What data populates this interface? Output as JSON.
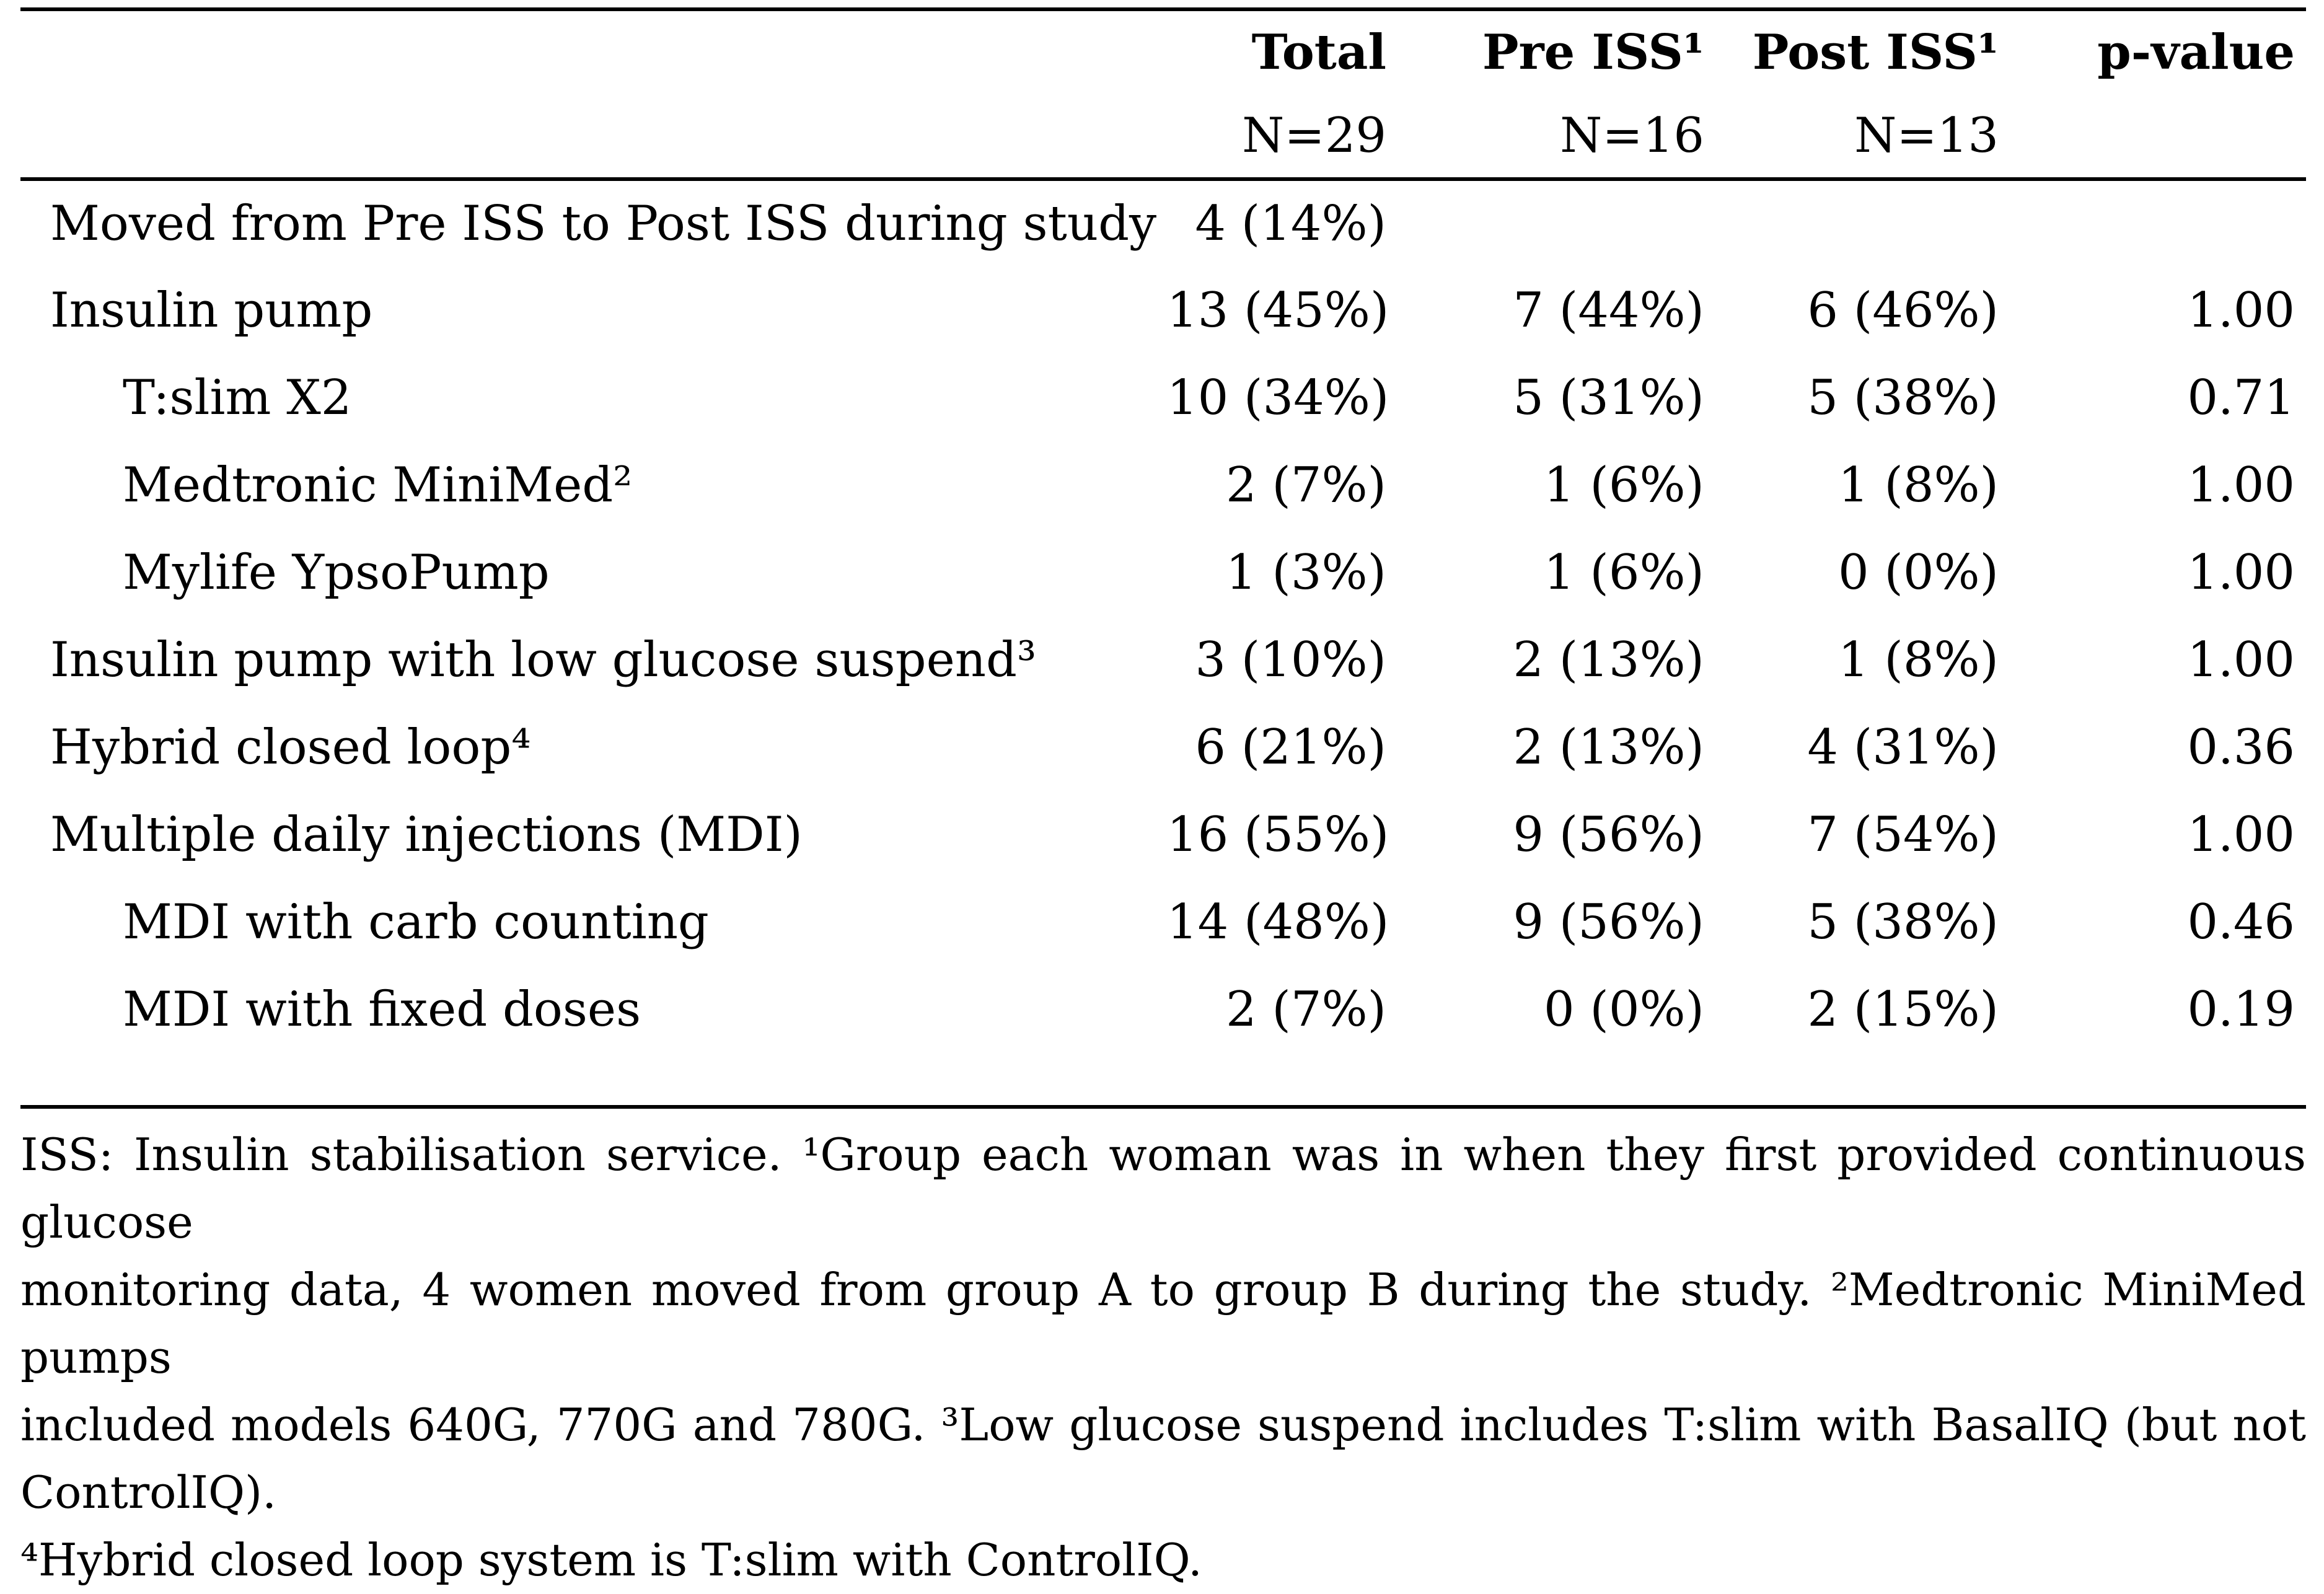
{
  "colors": {
    "background": "#ffffff",
    "text": "#000000",
    "rule": "#000000"
  },
  "table": {
    "column_headers": {
      "total": "Total",
      "pre": "Pre ISS¹",
      "post": "Post ISS¹",
      "pvalue": "p-value"
    },
    "subheaders": {
      "total": "N=29",
      "pre": "N=16",
      "post": "N=13",
      "pvalue": ""
    },
    "rows": [
      {
        "label": "Moved from Pre ISS to Post ISS during study",
        "indent": false,
        "total": "4 (14%)",
        "pre": "",
        "post": "",
        "p": ""
      },
      {
        "label": "Insulin pump",
        "indent": false,
        "total": "13 (45%)",
        "pre": "7 (44%)",
        "post": "6 (46%)",
        "p": "1.00"
      },
      {
        "label": "T:slim X2",
        "indent": true,
        "total": "10 (34%)",
        "pre": "5 (31%)",
        "post": "5 (38%)",
        "p": "0.71"
      },
      {
        "label": "Medtronic MiniMed²",
        "indent": true,
        "total": "2 (7%)",
        "pre": "1 (6%)",
        "post": "1 (8%)",
        "p": "1.00"
      },
      {
        "label": "Mylife YpsoPump",
        "indent": true,
        "total": "1 (3%)",
        "pre": "1 (6%)",
        "post": "0 (0%)",
        "p": "1.00"
      },
      {
        "label": "Insulin pump with low glucose suspend³",
        "indent": false,
        "total": "3 (10%)",
        "pre": "2 (13%)",
        "post": "1 (8%)",
        "p": "1.00"
      },
      {
        "label": "Hybrid closed loop⁴",
        "indent": false,
        "total": "6 (21%)",
        "pre": "2 (13%)",
        "post": "4 (31%)",
        "p": "0.36"
      },
      {
        "label": "Multiple daily injections (MDI)",
        "indent": false,
        "total": "16 (55%)",
        "pre": "9 (56%)",
        "post": "7 (54%)",
        "p": "1.00"
      },
      {
        "label": "MDI with carb counting",
        "indent": true,
        "total": "14 (48%)",
        "pre": "9 (56%)",
        "post": "5 (38%)",
        "p": "0.46"
      },
      {
        "label": "MDI with fixed doses",
        "indent": true,
        "total": "2 (7%)",
        "pre": "0 (0%)",
        "post": "2 (15%)",
        "p": "0.19"
      }
    ]
  },
  "footnote": {
    "lines": [
      "ISS: Insulin stabilisation service. ¹Group each woman was in when they first provided continuous glucose",
      "monitoring data, 4 women moved from group A to group B during the study. ²Medtronic MiniMed pumps",
      "included models 640G, 770G and 780G. ³Low glucose suspend includes T:slim with BasalIQ (but not ControlIQ).",
      "⁴Hybrid closed loop system is T:slim with ControlIQ."
    ]
  }
}
